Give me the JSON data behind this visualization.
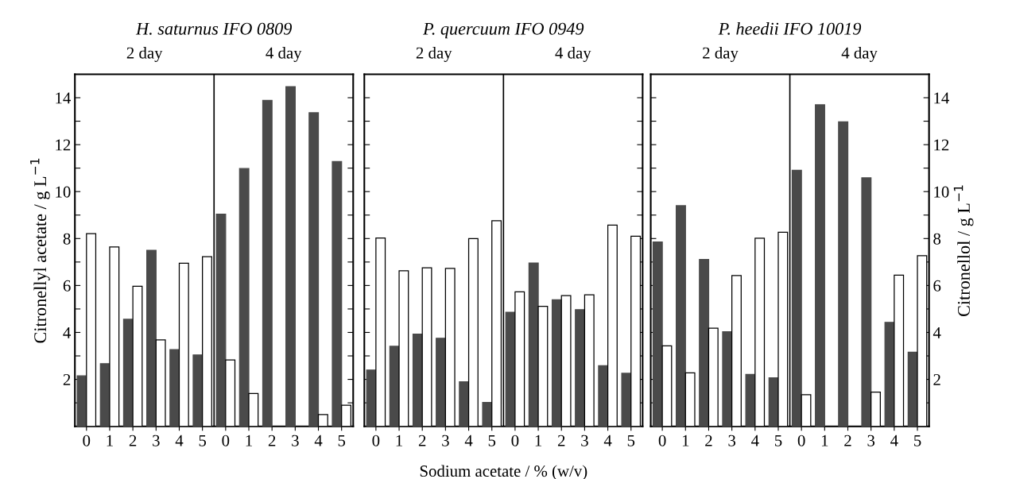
{
  "chart_data": [
    {
      "type": "bar",
      "title": "H. saturnus IFO 0809",
      "ylabel": "Citronellyl acetate / g L$^{−1}$",
      "categories": [
        "0",
        "1",
        "2",
        "3",
        "4",
        "5",
        "0",
        "1",
        "2",
        "3",
        "4",
        "5"
      ],
      "series": [
        {
          "color": "#4a4a4a",
          "values": [
            2.15,
            2.67,
            4.56,
            7.5,
            3.27,
            3.04,
            9.04,
            10.98,
            13.89,
            14.47,
            13.36,
            11.28
          ]
        },
        {
          "color": "#ffffff",
          "values": [
            8.21,
            7.64,
            5.97,
            3.68,
            6.95,
            7.23,
            2.83,
            1.4,
            null,
            null,
            0.5,
            0.9
          ]
        }
      ],
      "ylim": [
        0,
        15
      ],
      "yticks": [
        {
          "value": 1,
          "label": null
        },
        2,
        {
          "value": 3,
          "label": null
        },
        4,
        {
          "value": 5,
          "label": null
        },
        6,
        {
          "value": 7,
          "label": null
        },
        8,
        {
          "value": 9,
          "label": null
        },
        10,
        {
          "value": 11,
          "label": null
        },
        12,
        {
          "value": 13,
          "label": null
        },
        14
      ],
      "annotations": [
        "2 day",
        "4 day"
      ]
    },
    {
      "type": "bar",
      "title": "P. quercuum IFO 0949",
      "xlabel": "Sodium acetate / % (w/v)",
      "categories": [
        "0",
        "1",
        "2",
        "3",
        "4",
        "5",
        "0",
        "1",
        "2",
        "3",
        "4",
        "5"
      ],
      "series": [
        {
          "color": "#4a4a4a",
          "values": [
            2.4,
            3.41,
            3.93,
            3.75,
            1.9,
            1.02,
            4.86,
            6.96,
            5.39,
            4.97,
            2.58,
            2.26
          ]
        },
        {
          "color": "#ffffff",
          "values": [
            8.02,
            6.63,
            6.75,
            6.73,
            8.0,
            8.76,
            5.73,
            5.11,
            5.57,
            5.6,
            8.57,
            8.1
          ]
        }
      ],
      "ylim": [
        0,
        15
      ],
      "yticks": [
        {
          "value": 1,
          "label": null
        },
        2,
        {
          "value": 3,
          "label": null
        },
        4,
        {
          "value": 5,
          "label": null
        },
        6,
        {
          "value": 7,
          "label": null
        },
        8,
        {
          "value": 9,
          "label": null
        },
        10,
        {
          "value": 11,
          "label": null
        },
        12,
        {
          "value": 13,
          "label": null
        },
        14
      ],
      "tick_labels": "x",
      "annotations": [
        "2 day",
        "4 day"
      ]
    },
    {
      "type": "bar",
      "title": "P. heedii IFO 10019",
      "y2label": "Citronellol / g L$^{−1}$",
      "categories": [
        "0",
        "1",
        "2",
        "3",
        "4",
        "5",
        "0",
        "1",
        "2",
        "3",
        "4",
        "5"
      ],
      "series": [
        {
          "color": "#4a4a4a",
          "axis": "y2",
          "values": [
            7.85,
            9.4,
            7.11,
            4.03,
            2.21,
            2.07,
            10.91,
            13.7,
            12.97,
            10.59,
            4.43,
            3.16
          ]
        },
        {
          "color": "#ffffff",
          "axis": "y2",
          "values": [
            3.43,
            2.28,
            4.18,
            6.42,
            8.01,
            8.27,
            1.35,
            null,
            null,
            1.46,
            6.44,
            7.27
          ]
        }
      ],
      "y2lim": [
        0,
        15
      ],
      "y2ticks": [
        {
          "value": 1,
          "label": null
        },
        2,
        {
          "value": 3,
          "label": null
        },
        4,
        {
          "value": 5,
          "label": null
        },
        6,
        {
          "value": 7,
          "label": null
        },
        8,
        {
          "value": 9,
          "label": null
        },
        10,
        {
          "value": 11,
          "label": null
        },
        12,
        {
          "value": 13,
          "label": null
        },
        14
      ],
      "annotations": [
        "2 day",
        "4 day"
      ]
    }
  ]
}
